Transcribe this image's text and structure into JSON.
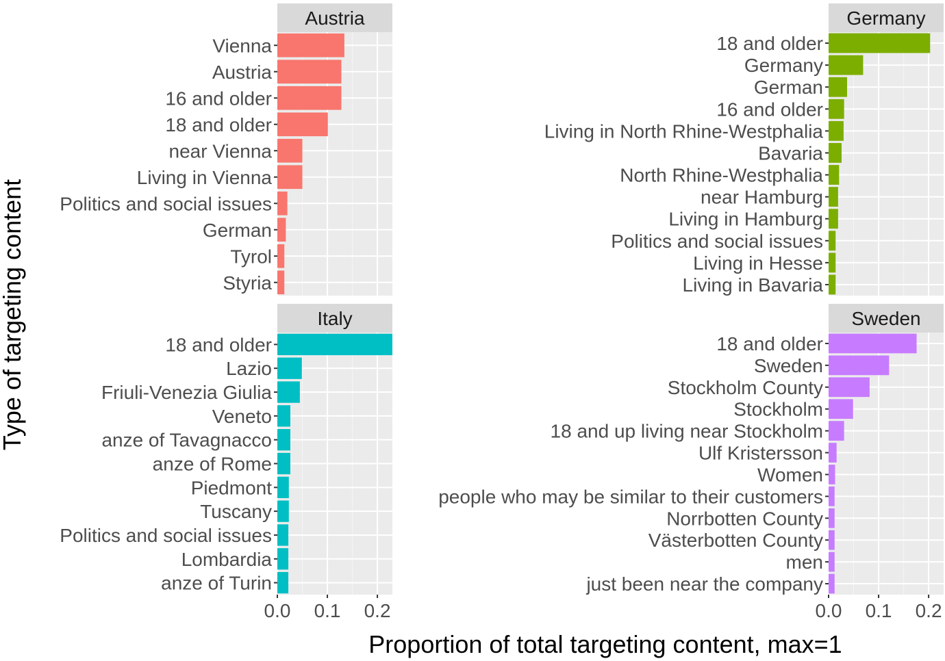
{
  "chart_data": [
    {
      "type": "bar",
      "orientation": "horizontal",
      "title": "Austria",
      "categories": [
        "Vienna",
        "Austria",
        "16 and older",
        "18 and older",
        "near Vienna",
        "Living in Vienna",
        "Politics and social issues",
        "German",
        "Tyrol",
        "Styria"
      ],
      "values": [
        0.134,
        0.128,
        0.128,
        0.101,
        0.05,
        0.05,
        0.02,
        0.017,
        0.014,
        0.014
      ],
      "xlim": [
        0,
        0.23
      ],
      "xticks": [
        "0.0",
        "0.1",
        "0.2"
      ],
      "color": "#F8766D",
      "grid": true
    },
    {
      "type": "bar",
      "orientation": "horizontal",
      "title": "Germany",
      "categories": [
        "18 and older",
        "Germany",
        "German",
        "16 and older",
        "Living in North Rhine-Westphalia",
        "Bavaria",
        "North Rhine-Westphalia",
        "near Hamburg",
        "Living in Hamburg",
        "Politics and social issues",
        "Living in Hesse",
        "Living in Bavaria"
      ],
      "values": [
        0.203,
        0.069,
        0.037,
        0.031,
        0.03,
        0.026,
        0.021,
        0.019,
        0.019,
        0.014,
        0.014,
        0.014
      ],
      "xlim": [
        0,
        0.23
      ],
      "xticks": [
        "0.0",
        "0.1",
        "0.2"
      ],
      "color": "#7CAE00",
      "grid": true
    },
    {
      "type": "bar",
      "orientation": "horizontal",
      "title": "Italy",
      "categories": [
        "18 and older",
        "Lazio",
        "Friuli-Venezia Giulia",
        "Veneto",
        "anze of Tavagnacco",
        "anze of Rome",
        "Piedmont",
        "Tuscany",
        "Politics and social issues",
        "Lombardia",
        "anze of Turin"
      ],
      "values": [
        0.23,
        0.049,
        0.045,
        0.026,
        0.026,
        0.026,
        0.023,
        0.023,
        0.022,
        0.022,
        0.022
      ],
      "xlim": [
        0,
        0.23
      ],
      "xticks": [
        "0.0",
        "0.1",
        "0.2"
      ],
      "color": "#00BFC4",
      "grid": true
    },
    {
      "type": "bar",
      "orientation": "horizontal",
      "title": "Sweden",
      "categories": [
        "18 and older",
        "Sweden",
        "Stockholm County",
        "Stockholm",
        "18 and up living near Stockholm",
        "Ulf Kristersson",
        "Women",
        "people who may be similar to their customers",
        "Norrbotten County",
        "Västerbotten County",
        "men",
        "just been near the company"
      ],
      "values": [
        0.176,
        0.121,
        0.082,
        0.049,
        0.031,
        0.016,
        0.013,
        0.012,
        0.012,
        0.012,
        0.012,
        0.012
      ],
      "xlim": [
        0,
        0.23
      ],
      "xticks": [
        "0.0",
        "0.1",
        "0.2"
      ],
      "color": "#C77CFF",
      "grid": true
    }
  ],
  "axes": {
    "xlabel": "Proportion of total targeting content, max=1",
    "ylabel": "Type of targeting content"
  }
}
